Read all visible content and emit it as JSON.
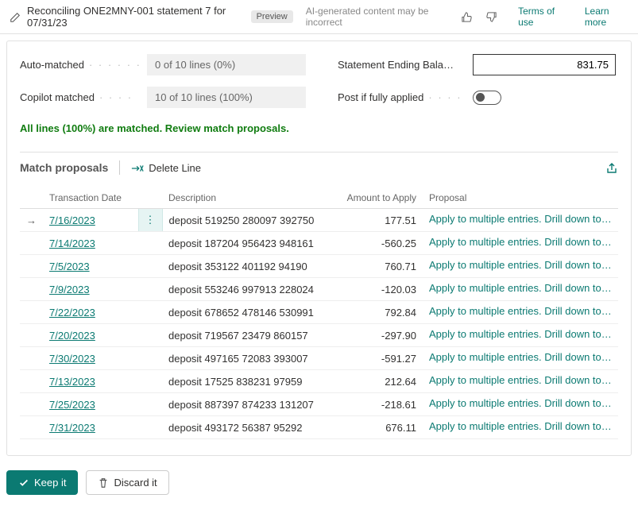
{
  "topbar": {
    "title": "Reconciling ONE2MNY-001 statement 7 for 07/31/23",
    "preview_badge": "Preview",
    "ai_note": "AI-generated content may be incorrect",
    "terms": "Terms of use",
    "learn_more": "Learn more"
  },
  "summary": {
    "auto_matched_label": "Auto-matched",
    "auto_matched_value": "0 of 10 lines (0%)",
    "copilot_matched_label": "Copilot matched",
    "copilot_matched_value": "10 of 10 lines (100%)",
    "balance_label": "Statement Ending Bala…",
    "balance_value": "831.75",
    "post_label": "Post if fully applied",
    "matched_msg": "All lines (100%) are matched. Review match proposals."
  },
  "section": {
    "title": "Match proposals",
    "delete_line": "Delete Line"
  },
  "table": {
    "headers": {
      "date": "Transaction Date",
      "desc": "Description",
      "amount": "Amount to Apply",
      "proposal": "Proposal"
    },
    "rows": [
      {
        "date": "7/16/2023",
        "desc": "deposit 519250 280097 392750",
        "amount": "177.51",
        "proposal": "Apply to multiple entries. Drill down to …",
        "active": true
      },
      {
        "date": "7/14/2023",
        "desc": "deposit 187204 956423 948161",
        "amount": "-560.25",
        "proposal": "Apply to multiple entries. Drill down to …",
        "active": false
      },
      {
        "date": "7/5/2023",
        "desc": "deposit 353122 401192 94190",
        "amount": "760.71",
        "proposal": "Apply to multiple entries. Drill down to …",
        "active": false
      },
      {
        "date": "7/9/2023",
        "desc": "deposit 553246 997913 228024",
        "amount": "-120.03",
        "proposal": "Apply to multiple entries. Drill down to …",
        "active": false
      },
      {
        "date": "7/22/2023",
        "desc": "deposit 678652 478146 530991",
        "amount": "792.84",
        "proposal": "Apply to multiple entries. Drill down to …",
        "active": false
      },
      {
        "date": "7/20/2023",
        "desc": "deposit 719567 23479 860157",
        "amount": "-297.90",
        "proposal": "Apply to multiple entries. Drill down to …",
        "active": false
      },
      {
        "date": "7/30/2023",
        "desc": "deposit 497165 72083 393007",
        "amount": "-591.27",
        "proposal": "Apply to multiple entries. Drill down to …",
        "active": false
      },
      {
        "date": "7/13/2023",
        "desc": "deposit 17525 838231 97959",
        "amount": "212.64",
        "proposal": "Apply to multiple entries. Drill down to …",
        "active": false
      },
      {
        "date": "7/25/2023",
        "desc": "deposit 887397 874233 131207",
        "amount": "-218.61",
        "proposal": "Apply to multiple entries. Drill down to …",
        "active": false
      },
      {
        "date": "7/31/2023",
        "desc": "deposit 493172 56387 95292",
        "amount": "676.11",
        "proposal": "Apply to multiple entries. Drill down to …",
        "active": false
      }
    ]
  },
  "footer": {
    "keep": "Keep it",
    "discard": "Discard it"
  }
}
